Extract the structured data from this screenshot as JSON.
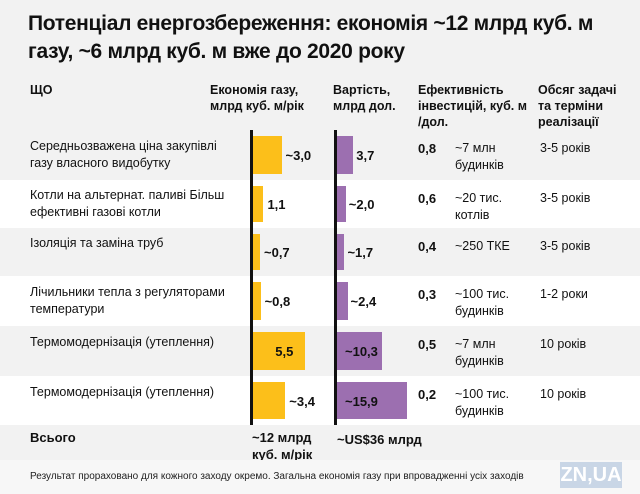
{
  "title": "Потенціал енергозбереження: економія ~12 млрд куб. м газу, ~6 млрд куб. м вже до 2020 року",
  "headers": {
    "what": "ЩО",
    "gas": "Економія газу, млрд куб. м/рік",
    "cost": "Вартість, млрд дол.",
    "eff": "Ефективність інвестицій, куб. м /дол.",
    "scope": "Обсяг задачі та терміни реалізації"
  },
  "chart_data": {
    "type": "table",
    "categories": [
      "Середньозважена ціна закупівлі газу власного видобутку",
      "Котли на альтернат. паливі Більш ефективні газові котли",
      "Ізоляція та заміна труб",
      "Лічильники тепла з регуляторами температури",
      "Термомодернізація (утеплення)",
      "Термомодернізація (утеплення)"
    ],
    "series": [
      {
        "name": "Економія газу, млрд куб. м/рік",
        "values": [
          3.0,
          1.1,
          0.7,
          0.8,
          5.5,
          3.4
        ],
        "color": "#fcbf1a"
      },
      {
        "name": "Вартість, млрд дол.",
        "values": [
          3.7,
          2.0,
          1.7,
          2.4,
          10.3,
          15.9
        ],
        "color": "#9c6fb0"
      }
    ]
  },
  "rows": [
    {
      "what": "Середньозважена ціна закупівлі газу власного видобутку",
      "gas": "~3,0",
      "cost": "3,7",
      "eff": "0,8",
      "eff_note": "~7 млн будинків",
      "scope": "3-5 років"
    },
    {
      "what": "Котли на альтернат. паливі Більш ефективні газові котли",
      "gas": "1,1",
      "cost": "~2,0",
      "eff": "0,6",
      "eff_note": "~20 тис. котлів",
      "scope": "3-5 років"
    },
    {
      "what": "Ізоляція та заміна труб",
      "gas": "~0,7",
      "cost": "~1,7",
      "eff": "0,4",
      "eff_note": "~250 ТКЕ",
      "scope": "3-5 років"
    },
    {
      "what": "Лічильники тепла з регуляторами температури",
      "gas": "~0,8",
      "cost": "~2,4",
      "eff": "0,3",
      "eff_note": "~100 тис. будинків",
      "scope": "1-2 роки"
    },
    {
      "what": "Термомодернізація (утеплення)",
      "gas": "5,5",
      "cost": "~10,3",
      "eff": "0,5",
      "eff_note": "~7 млн будинків",
      "scope": "10 років"
    },
    {
      "what": "Термомодернізація (утеплення)",
      "gas": "~3,4",
      "cost": "~15,9",
      "eff": "0,2",
      "eff_note": "~100 тис. будинків",
      "scope": "10 років"
    }
  ],
  "total": {
    "label": "Всього",
    "gas": "~12 млрд куб. м/рік",
    "cost": "~US$36 млрд"
  },
  "footnote": "Результат прораховано для кожного заходу окремо. Загальна економія газу при впровадженні усіх заходів",
  "logo": "ZN,UA"
}
